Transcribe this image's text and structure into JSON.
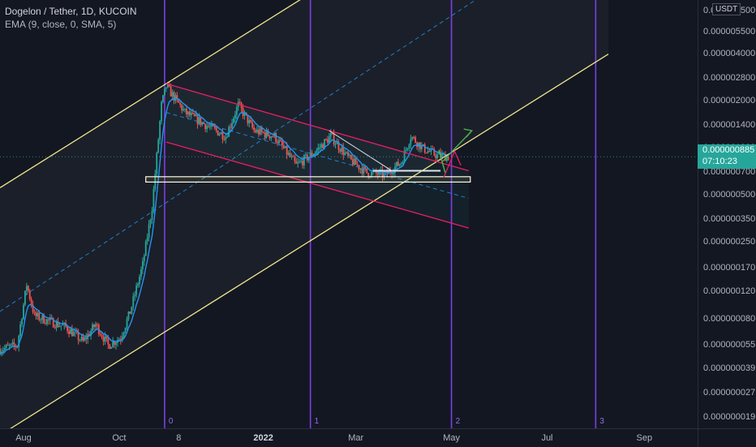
{
  "header": {
    "symbol": "Dogelon / Tether, 1D, KUCOIN",
    "indicator": "EMA (9, close, 0, SMA, 5)"
  },
  "price_axis": {
    "currency": "USDT",
    "last_price": "0.000000885",
    "countdown": "07:10:23",
    "ticks": [
      "0.000007500",
      "0.000005500",
      "0.000004000",
      "0.000002800",
      "0.000002000",
      "0.000001400",
      "0.000001000",
      "0.000000700",
      "0.000000500",
      "0.000000350",
      "0.000000250",
      "0.000000170",
      "0.000000120",
      "0.000000080",
      "0.000000055",
      "0.000000039",
      "0.000000027",
      "0.000000019"
    ]
  },
  "time_axis": {
    "ticks": [
      "Aug",
      "Oct",
      "8",
      "2022",
      "Mar",
      "May",
      "Jul",
      "Sep"
    ]
  },
  "cycle_labels": [
    "0",
    "1",
    "2",
    "3"
  ],
  "colors": {
    "background": "#131722",
    "up": "#26a69a",
    "down": "#ef5350",
    "ema": "#2196f3",
    "channel_yellow": "#f0e68c",
    "channel_red": "#e91e63",
    "cycle_line": "#7b3fe4",
    "arrow_green": "#4caf50"
  },
  "chart_data": {
    "type": "candlestick",
    "symbol": "Dogelon / Tether",
    "interval": "1D",
    "exchange": "KUCOIN",
    "y_scale": "log",
    "ylim": [
      1.7e-08,
      8.5e-06
    ],
    "x_range": [
      "2021-07-17",
      "2022-10-05"
    ],
    "last_price": 8.85e-07,
    "key_levels": {
      "support_zone": 6.3e-07,
      "peak": 2.6e-06,
      "trough": 4.5e-08
    },
    "cycle_markers": [
      {
        "label": "0",
        "date": "2021-10-30"
      },
      {
        "label": "1",
        "date": "2022-01-31"
      },
      {
        "label": "2",
        "date": "2022-05-01"
      },
      {
        "label": "3",
        "date": "2022-08-01"
      }
    ],
    "price_path": [
      {
        "date": "2021-07-17",
        "price": 5.2e-08
      },
      {
        "date": "2021-07-28",
        "price": 5.5e-08
      },
      {
        "date": "2021-08-03",
        "price": 1.35e-07
      },
      {
        "date": "2021-08-08",
        "price": 8.5e-08
      },
      {
        "date": "2021-08-18",
        "price": 7.8e-08
      },
      {
        "date": "2021-08-28",
        "price": 7.2e-08
      },
      {
        "date": "2021-09-08",
        "price": 5.8e-08
      },
      {
        "date": "2021-09-16",
        "price": 7.5e-08
      },
      {
        "date": "2021-09-24",
        "price": 5.5e-08
      },
      {
        "date": "2021-10-02",
        "price": 6.2e-08
      },
      {
        "date": "2021-10-08",
        "price": 9e-08
      },
      {
        "date": "2021-10-16",
        "price": 1.8e-07
      },
      {
        "date": "2021-10-22",
        "price": 4.2e-07
      },
      {
        "date": "2021-10-28",
        "price": 1.9e-06
      },
      {
        "date": "2021-10-31",
        "price": 2.5e-06
      },
      {
        "date": "2021-11-12",
        "price": 1.7e-06
      },
      {
        "date": "2021-11-26",
        "price": 1.4e-06
      },
      {
        "date": "2021-12-08",
        "price": 1.2e-06
      },
      {
        "date": "2021-12-16",
        "price": 1.9e-06
      },
      {
        "date": "2021-12-26",
        "price": 1.3e-06
      },
      {
        "date": "2022-01-08",
        "price": 1.2e-06
      },
      {
        "date": "2022-01-22",
        "price": 7.8e-07
      },
      {
        "date": "2022-02-03",
        "price": 9.5e-07
      },
      {
        "date": "2022-02-13",
        "price": 1.2e-06
      },
      {
        "date": "2022-02-25",
        "price": 8.5e-07
      },
      {
        "date": "2022-03-08",
        "price": 7e-07
      },
      {
        "date": "2022-03-20",
        "price": 6.8e-07
      },
      {
        "date": "2022-03-30",
        "price": 8.2e-07
      },
      {
        "date": "2022-04-05",
        "price": 1.2e-06
      },
      {
        "date": "2022-04-13",
        "price": 1e-06
      },
      {
        "date": "2022-04-22",
        "price": 9e-07
      },
      {
        "date": "2022-04-29",
        "price": 8.85e-07
      }
    ]
  }
}
